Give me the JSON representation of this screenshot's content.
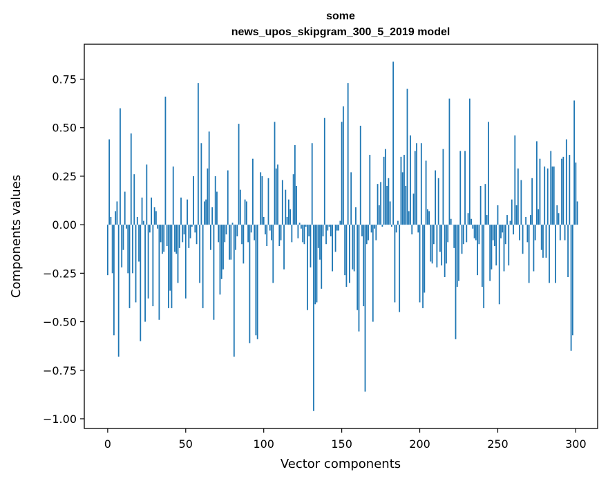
{
  "chart_data": {
    "type": "bar",
    "title_lines": [
      "some",
      "news_upos_skipgram_300_5_2019 model"
    ],
    "xlabel": "Vector components",
    "ylabel": "Components values",
    "xlim": [
      -15,
      314
    ],
    "ylim": [
      -1.05,
      0.93
    ],
    "xticks": [
      0,
      50,
      100,
      150,
      200,
      250,
      300
    ],
    "xtick_labels": [
      "0",
      "50",
      "100",
      "150",
      "200",
      "250",
      "300"
    ],
    "yticks": [
      0.75,
      0.5,
      0.25,
      0.0,
      -0.25,
      -0.5,
      -0.75,
      -1.0
    ],
    "ytick_labels": [
      "0.75",
      "0.50",
      "0.25",
      "0.00",
      "−0.25",
      "−0.50",
      "−0.75",
      "−1.00"
    ],
    "bar_color": "#1f77b4",
    "values": [
      -0.26,
      0.44,
      0.04,
      -0.25,
      -0.57,
      0.07,
      0.12,
      -0.68,
      0.6,
      -0.22,
      -0.13,
      0.17,
      -0.02,
      -0.25,
      -0.43,
      0.47,
      -0.25,
      0.26,
      -0.4,
      0.04,
      -0.19,
      -0.6,
      0.14,
      0.02,
      -0.5,
      0.31,
      -0.38,
      -0.04,
      0.14,
      -0.42,
      0.09,
      0.07,
      -0.02,
      -0.49,
      -0.09,
      -0.15,
      -0.14,
      0.66,
      -0.11,
      -0.43,
      -0.34,
      -0.43,
      0.3,
      -0.14,
      -0.15,
      -0.3,
      -0.12,
      0.14,
      -0.09,
      -0.05,
      -0.38,
      0.13,
      -0.12,
      -0.07,
      -0.01,
      0.25,
      -0.04,
      -0.1,
      0.73,
      -0.3,
      0.42,
      -0.43,
      0.12,
      0.13,
      0.29,
      0.48,
      -0.13,
      0.09,
      -0.49,
      0.25,
      0.17,
      -0.09,
      -0.36,
      -0.28,
      -0.23,
      -0.09,
      -0.05,
      0.28,
      -0.18,
      -0.18,
      0.01,
      -0.68,
      -0.13,
      -0.06,
      0.52,
      0.18,
      -0.1,
      -0.2,
      0.13,
      0.12,
      -0.09,
      -0.61,
      -0.04,
      0.34,
      -0.08,
      -0.57,
      -0.59,
      0.0,
      0.27,
      0.25,
      0.04,
      -0.05,
      -0.11,
      0.24,
      -0.03,
      -0.08,
      -0.3,
      0.53,
      0.29,
      0.31,
      -0.11,
      -0.08,
      0.23,
      -0.23,
      0.18,
      0.04,
      0.13,
      0.08,
      -0.09,
      0.26,
      0.41,
      0.2,
      -0.07,
      0.01,
      -0.02,
      -0.09,
      -0.1,
      -0.01,
      -0.44,
      -0.06,
      -0.22,
      0.42,
      -0.96,
      -0.41,
      -0.4,
      -0.12,
      -0.18,
      -0.33,
      -0.06,
      0.55,
      -0.1,
      -0.03,
      -0.01,
      -0.06,
      -0.24,
      0.0,
      -0.14,
      -0.03,
      -0.03,
      0.02,
      0.53,
      0.61,
      -0.26,
      -0.32,
      0.73,
      -0.3,
      0.27,
      -0.23,
      -0.24,
      0.09,
      -0.44,
      -0.55,
      0.51,
      -0.06,
      -0.42,
      -0.86,
      -0.1,
      -0.08,
      0.36,
      -0.04,
      -0.5,
      -0.02,
      -0.08,
      0.21,
      0.1,
      0.22,
      -0.01,
      0.35,
      0.39,
      0.2,
      0.24,
      0.12,
      -0.01,
      0.84,
      -0.4,
      -0.04,
      0.02,
      -0.45,
      0.35,
      0.27,
      0.36,
      0.2,
      0.7,
      0.07,
      0.46,
      -0.05,
      0.16,
      0.38,
      0.42,
      -0.04,
      -0.4,
      0.42,
      -0.43,
      -0.35,
      0.33,
      0.08,
      0.07,
      -0.19,
      -0.2,
      -0.1,
      0.28,
      -0.22,
      0.24,
      -0.14,
      -0.21,
      0.39,
      -0.27,
      -0.2,
      -0.09,
      0.65,
      0.03,
      0.0,
      -0.12,
      -0.59,
      -0.32,
      -0.29,
      0.38,
      -0.15,
      -0.1,
      0.38,
      -0.09,
      0.06,
      0.65,
      0.03,
      -0.02,
      -0.07,
      -0.08,
      -0.26,
      -0.1,
      0.2,
      -0.32,
      -0.43,
      0.21,
      0.05,
      0.53,
      -0.29,
      -0.23,
      -0.08,
      -0.11,
      -0.21,
      0.1,
      -0.41,
      -0.07,
      -0.04,
      -0.24,
      -0.1,
      0.05,
      -0.21,
      0.02,
      0.13,
      -0.05,
      0.46,
      0.1,
      0.29,
      -0.08,
      0.23,
      -0.15,
      0.0,
      0.04,
      -0.09,
      -0.3,
      0.05,
      0.24,
      -0.24,
      -0.08,
      0.43,
      0.08,
      0.34,
      -0.13,
      -0.17,
      0.3,
      -0.17,
      0.29,
      -0.3,
      0.38,
      0.3,
      0.3,
      -0.3,
      0.1,
      0.06,
      -0.08,
      0.34,
      0.35,
      -0.08,
      0.44,
      -0.27,
      0.36,
      -0.65,
      -0.57,
      0.64,
      0.32,
      0.12
    ]
  }
}
